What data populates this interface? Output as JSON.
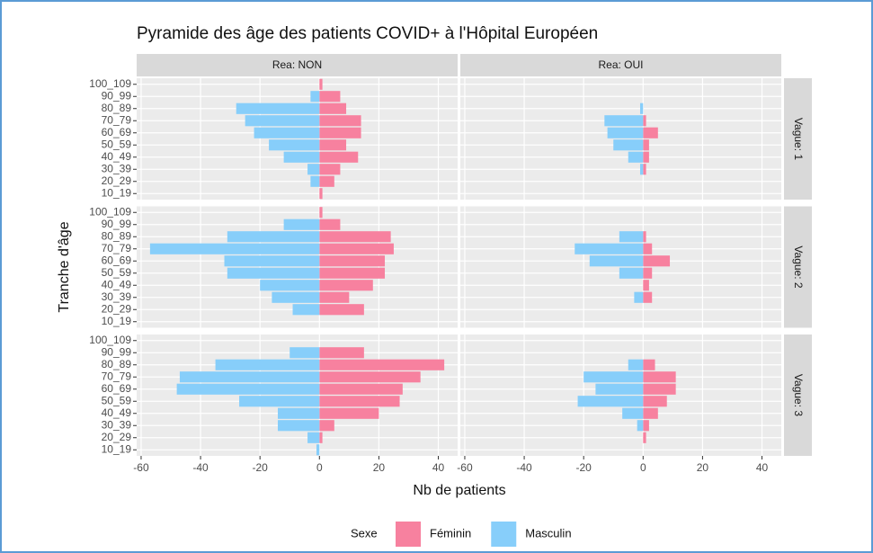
{
  "chart_data": {
    "type": "bar",
    "orientation": "horizontal",
    "title": "Pyramide des âge des patients COVID+ à l'Hôpital Européen",
    "x_label": "Nb de patients",
    "y_label": "Tranche d'âge",
    "facet_cols": [
      "Rea: NON",
      "Rea: OUI"
    ],
    "facet_rows": [
      "Vague: 1",
      "Vague: 2",
      "Vague: 3"
    ],
    "categories": [
      "10_19",
      "20_29",
      "30_39",
      "40_49",
      "50_59",
      "60_69",
      "70_79",
      "80_89",
      "90_99",
      "100_109"
    ],
    "legend_title": "Sexe",
    "legend_position": "bottom",
    "grid": true,
    "xlim": [
      -61.5,
      46.5
    ],
    "xticks": [
      -60,
      -40,
      -20,
      0,
      20,
      40
    ],
    "series": [
      {
        "name": "Féminin",
        "color": "#f7819f",
        "values": [
          [
            [
              1,
              5,
              7,
              13,
              9,
              14,
              14,
              9,
              7,
              1
            ],
            [
              0,
              0,
              1,
              2,
              2,
              5,
              1,
              0,
              0,
              0
            ]
          ],
          [
            [
              0,
              15,
              10,
              18,
              22,
              22,
              25,
              24,
              7,
              1
            ],
            [
              0,
              0,
              3,
              2,
              3,
              9,
              3,
              1,
              0,
              0
            ]
          ],
          [
            [
              0,
              1,
              5,
              20,
              27,
              28,
              34,
              42,
              15,
              0
            ],
            [
              0,
              1,
              2,
              5,
              8,
              11,
              11,
              4,
              0,
              0
            ]
          ]
        ]
      },
      {
        "name": "Masculin",
        "color": "#87cefa",
        "values": [
          [
            [
              0,
              -3,
              -4,
              -12,
              -17,
              -22,
              -25,
              -28,
              -3,
              0
            ],
            [
              0,
              0,
              -1,
              -5,
              -10,
              -12,
              -13,
              -1,
              0,
              0
            ]
          ],
          [
            [
              0,
              -9,
              -16,
              -20,
              -31,
              -32,
              -57,
              -31,
              -12,
              0
            ],
            [
              0,
              0,
              -3,
              0,
              -8,
              -18,
              -23,
              -8,
              0,
              0
            ]
          ],
          [
            [
              -1,
              -4,
              -14,
              -14,
              -27,
              -48,
              -47,
              -35,
              -10,
              0
            ],
            [
              0,
              0,
              -2,
              -7,
              -22,
              -16,
              -20,
              -5,
              0,
              0
            ]
          ]
        ]
      }
    ]
  }
}
